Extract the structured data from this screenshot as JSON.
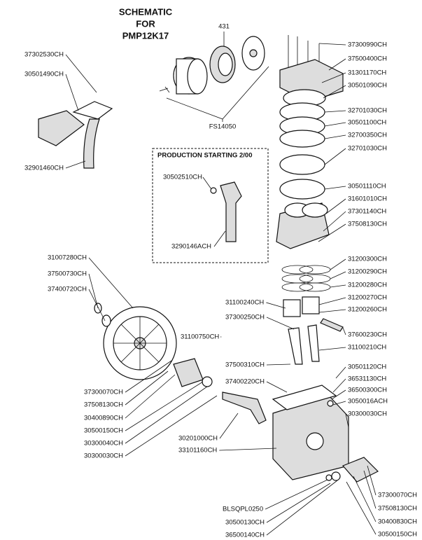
{
  "title": [
    "SCHEMATIC",
    "FOR",
    "PMP12K17"
  ],
  "production_box": {
    "title": "PRODUCTION STARTING 2/00",
    "parts": [
      "30502510CH",
      "3290146ACH"
    ]
  },
  "callouts": [
    "431",
    "FS14050",
    "37302530CH",
    "30501490CH",
    "32901460CH",
    "37300990CH",
    "37500400CH",
    "31301170CH",
    "30501090CH",
    "32701030CH",
    "30501100CH",
    "32700350CH",
    "32701030CH",
    "30501110CH",
    "31601010CH",
    "37301140CH",
    "37508130CH",
    "31200300CH",
    "31200290CH",
    "31200280CH",
    "31200270CH",
    "31200260CH",
    "37600230CH",
    "31100210CH",
    "30501120CH",
    "36531130CH",
    "36500300CH",
    "3050016ACH",
    "30300030CH",
    "31007280CH",
    "37500730CH",
    "37400720CH",
    "31100240CH",
    "37300250CH",
    "31100750CH",
    "37500310CH",
    "37400220CH",
    "37300070CH",
    "37508130CH",
    "30400890CH",
    "30500150CH",
    "30300040CH",
    "30300030CH",
    "30201000CH",
    "33101160CH",
    "BLSQPL0250",
    "30500130CH",
    "36500140CH",
    "37300070CH",
    "37508130CH",
    "30400830CH",
    "30500150CH"
  ]
}
